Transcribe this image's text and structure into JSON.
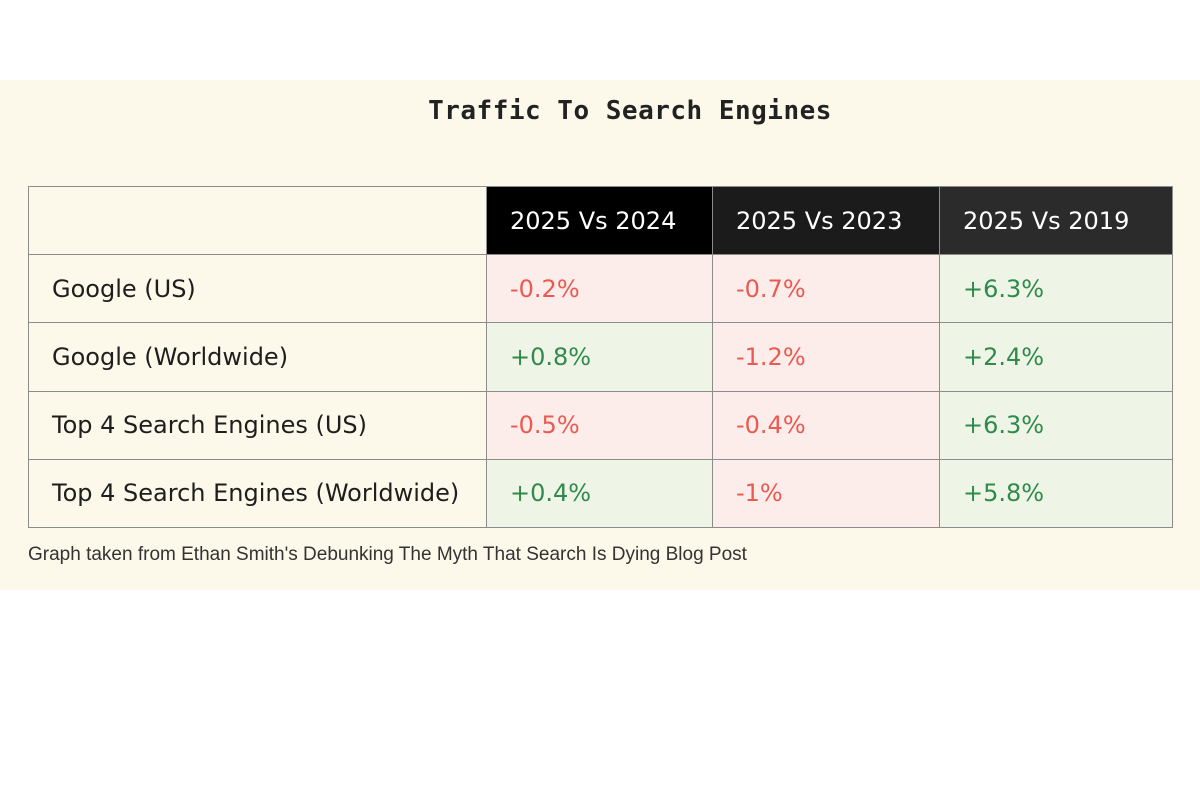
{
  "chart_data": {
    "type": "table",
    "title": "Traffic To Search Engines",
    "columns": [
      {
        "label": "2025 Vs 2024",
        "header_color": "#000000"
      },
      {
        "label": "2025 Vs 2023",
        "header_color": "#1b1b1b"
      },
      {
        "label": "2025 Vs 2019",
        "header_color": "#2b2b2b"
      }
    ],
    "rows": [
      {
        "label": "Google (US)",
        "cells": [
          {
            "text": "-0.2%",
            "value": -0.2
          },
          {
            "text": "-0.7%",
            "value": -0.7
          },
          {
            "text": "+6.3%",
            "value": 6.3
          }
        ]
      },
      {
        "label": "Google (Worldwide)",
        "cells": [
          {
            "text": "+0.8%",
            "value": 0.8
          },
          {
            "text": "-1.2%",
            "value": -1.2
          },
          {
            "text": "+2.4%",
            "value": 2.4
          }
        ]
      },
      {
        "label": "Top 4 Search Engines (US)",
        "cells": [
          {
            "text": "-0.5%",
            "value": -0.5
          },
          {
            "text": "-0.4%",
            "value": -0.4
          },
          {
            "text": "+6.3%",
            "value": 6.3
          }
        ]
      },
      {
        "label": "Top 4 Search Engines (Worldwide)",
        "cells": [
          {
            "text": "+0.4%",
            "value": 0.4
          },
          {
            "text": "-1%",
            "value": -1
          },
          {
            "text": "+5.8%",
            "value": 5.8
          }
        ]
      }
    ],
    "colors": {
      "negative_text": "#ea5a50",
      "negative_bg": "#fcedeb",
      "positive_text": "#2f8a4c",
      "positive_bg": "#eff5e6",
      "panel_bg": "#fcf8ea"
    }
  },
  "caption": "Graph taken from Ethan Smith's Debunking The Myth That Search Is Dying Blog Post"
}
